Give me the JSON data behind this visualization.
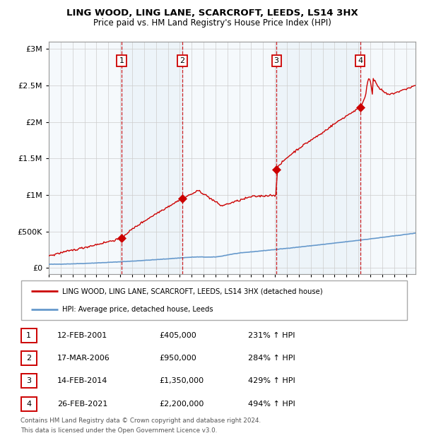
{
  "title": "LING WOOD, LING LANE, SCARCROFT, LEEDS, LS14 3HX",
  "subtitle": "Price paid vs. HM Land Registry's House Price Index (HPI)",
  "legend_line1": "LING WOOD, LING LANE, SCARCROFT, LEEDS, LS14 3HX (detached house)",
  "legend_line2": "HPI: Average price, detached house, Leeds",
  "footnote1": "Contains HM Land Registry data © Crown copyright and database right 2024.",
  "footnote2": "This data is licensed under the Open Government Licence v3.0.",
  "sale_dates": [
    "12-FEB-2001",
    "17-MAR-2006",
    "14-FEB-2014",
    "26-FEB-2021"
  ],
  "sale_prices": [
    405000,
    950000,
    1350000,
    2200000
  ],
  "sale_hpi_pct": [
    "231%",
    "284%",
    "429%",
    "494%"
  ],
  "sale_years": [
    2001.11,
    2006.21,
    2014.12,
    2021.15
  ],
  "prices_str": [
    "£405,000",
    "£950,000",
    "£1,350,000",
    "£2,200,000"
  ],
  "hpi_strs": [
    "231% ↑ HPI",
    "284% ↑ HPI",
    "429% ↑ HPI",
    "494% ↑ HPI"
  ],
  "hpi_color": "#6699cc",
  "price_color": "#cc0000",
  "dashed_line_color": "#cc0000",
  "shade_color": "#cce0f0",
  "ylim_max": 3100000,
  "ylim_min": -80000,
  "xlim_min": 1995.0,
  "xlim_max": 2025.8
}
